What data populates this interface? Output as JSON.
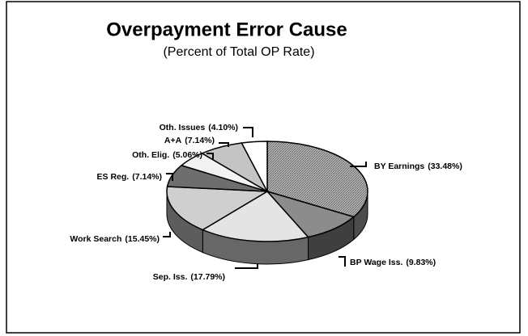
{
  "chart_data": {
    "type": "pie",
    "title": "Overpayment Error Cause",
    "subtitle": "(Percent of Total OP Rate)",
    "categories": [
      "BY Earnings",
      "BP Wage Iss.",
      "Sep. Iss.",
      "Work Search",
      "ES Reg.",
      "Oth. Elig.",
      "A+A",
      "Oth. Issues"
    ],
    "values": [
      33.48,
      9.83,
      17.79,
      15.45,
      7.14,
      5.06,
      7.14,
      4.1
    ],
    "value_labels": [
      "(33.48%)",
      "(9.83%)",
      "(17.79%)",
      "(15.45%)",
      "(7.14%)",
      "(5.06%)",
      "(7.14%)",
      "(4.10%)"
    ],
    "colors": [
      "#a8a8a8",
      "#8c8c8c",
      "#e4e4e4",
      "#cfcfcf",
      "#6e6e6e",
      "#f2f2f2",
      "#c4c4c4",
      "#ffffff"
    ]
  }
}
